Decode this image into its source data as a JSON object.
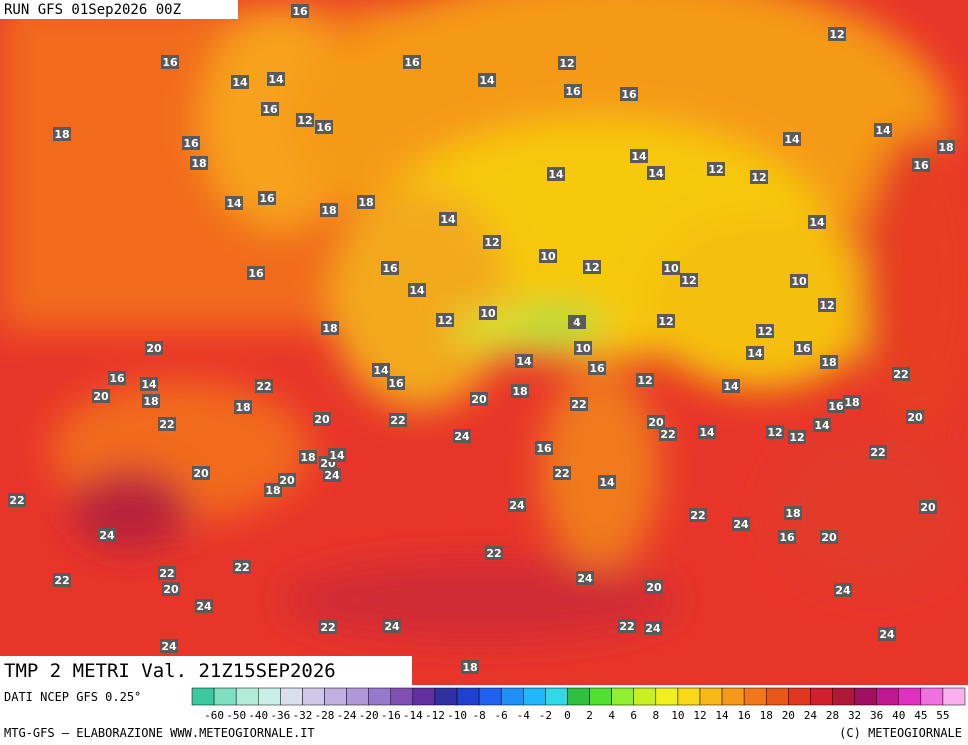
{
  "header": {
    "run": "RUN GFS 01Sep2026 00Z"
  },
  "map": {
    "labels": [
      16,
      16,
      14,
      14,
      16,
      14,
      12,
      16,
      16,
      12,
      18,
      16,
      18,
      16,
      12,
      16,
      14,
      18,
      14,
      14,
      12,
      14,
      12,
      16,
      14,
      14,
      16,
      18,
      18,
      14,
      12,
      10,
      14,
      16,
      16,
      12,
      10,
      12,
      10,
      14,
      12,
      18,
      12,
      10,
      4,
      12,
      12,
      20,
      16,
      14,
      18,
      10,
      14,
      14,
      16,
      14,
      22,
      16,
      16,
      12,
      22,
      20,
      18,
      18,
      18,
      20,
      14,
      20,
      22,
      22,
      16,
      18,
      20,
      22,
      20,
      22,
      14,
      12,
      12,
      14,
      24,
      22,
      18,
      20,
      14,
      16,
      20,
      24,
      22,
      14,
      18,
      20,
      22,
      24,
      22,
      24,
      18,
      20,
      24,
      16,
      20,
      22,
      22,
      22,
      20,
      22,
      24,
      20,
      24,
      24,
      22,
      24,
      22,
      24,
      24,
      24,
      18
    ]
  },
  "footer": {
    "title": "TMP 2 METRI Val. 21Z15SEP2026",
    "source": "DATI NCEP GFS 0.25°",
    "legend": {
      "ticks": [
        -60,
        -50,
        -40,
        -36,
        -32,
        -28,
        -24,
        -20,
        -16,
        -14,
        -12,
        -10,
        -8,
        -6,
        -4,
        -2,
        0,
        2,
        4,
        6,
        8,
        10,
        12,
        14,
        16,
        18,
        20,
        24,
        28,
        32,
        36,
        40,
        45,
        55
      ]
    },
    "credit": "MTG-GFS — ELABORAZIONE WWW.METEOGIORNALE.IT",
    "copyright": "(C) METEOGIORNALE"
  }
}
